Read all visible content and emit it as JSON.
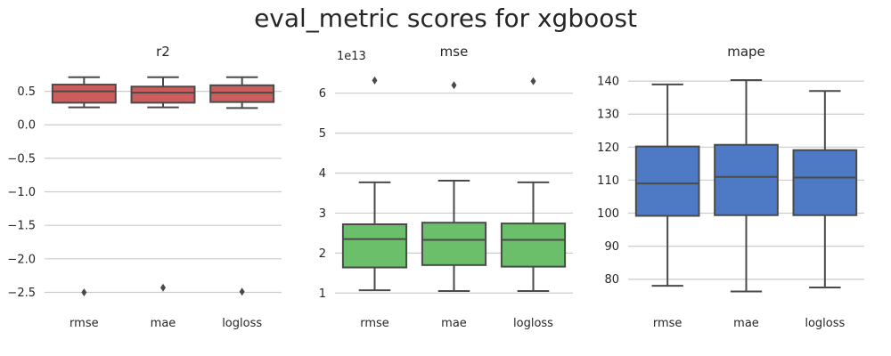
{
  "suptitle": "eval_metric scores for xgboost",
  "chart_data": [
    {
      "type": "box",
      "title": "r2",
      "color": "#cd5c5c",
      "categories": [
        "rmse",
        "mae",
        "logloss"
      ],
      "ylim": [
        -2.6,
        0.8
      ],
      "yticks": [
        -2.5,
        -2.0,
        -1.5,
        -1.0,
        -0.5,
        0.0,
        0.5
      ],
      "ytick_labels": [
        "−2.5",
        "−2.0",
        "−1.5",
        "−1.0",
        "−0.5",
        "0.0",
        "0.5"
      ],
      "offset_label": "",
      "boxes": [
        {
          "whislo": 0.26,
          "q1": 0.33,
          "med": 0.5,
          "q3": 0.6,
          "whishi": 0.71,
          "fliers": [
            -2.5
          ]
        },
        {
          "whislo": 0.26,
          "q1": 0.33,
          "med": 0.48,
          "q3": 0.57,
          "whishi": 0.71,
          "fliers": [
            -2.43
          ]
        },
        {
          "whislo": 0.25,
          "q1": 0.34,
          "med": 0.48,
          "q3": 0.59,
          "whishi": 0.71,
          "fliers": [
            -2.49
          ]
        }
      ]
    },
    {
      "type": "box",
      "title": "mse",
      "color": "#6bbf6b",
      "categories": [
        "rmse",
        "mae",
        "logloss"
      ],
      "ylim": [
        0.85,
        6.55
      ],
      "yticks": [
        1,
        2,
        3,
        4,
        5,
        6
      ],
      "ytick_labels": [
        "1",
        "2",
        "3",
        "4",
        "5",
        "6"
      ],
      "offset_label": "1e13",
      "boxes": [
        {
          "whislo": 1.07,
          "q1": 1.64,
          "med": 2.35,
          "q3": 2.72,
          "whishi": 3.77,
          "fliers": [
            6.32
          ]
        },
        {
          "whislo": 1.05,
          "q1": 1.7,
          "med": 2.33,
          "q3": 2.76,
          "whishi": 3.81,
          "fliers": [
            6.2
          ]
        },
        {
          "whislo": 1.05,
          "q1": 1.66,
          "med": 2.33,
          "q3": 2.74,
          "whishi": 3.77,
          "fliers": [
            6.3
          ]
        }
      ]
    },
    {
      "type": "box",
      "title": "mape",
      "color": "#4e79c4",
      "categories": [
        "rmse",
        "mae",
        "logloss"
      ],
      "ylim": [
        74,
        143
      ],
      "yticks": [
        80,
        90,
        100,
        110,
        120,
        130,
        140
      ],
      "ytick_labels": [
        "80",
        "90",
        "100",
        "110",
        "120",
        "130",
        "140"
      ],
      "offset_label": "",
      "boxes": [
        {
          "whislo": 78.0,
          "q1": 99.2,
          "med": 109.0,
          "q3": 120.2,
          "whishi": 139.0,
          "fliers": []
        },
        {
          "whislo": 76.3,
          "q1": 99.4,
          "med": 111.0,
          "q3": 120.7,
          "whishi": 140.3,
          "fliers": []
        },
        {
          "whislo": 77.5,
          "q1": 99.4,
          "med": 110.8,
          "q3": 119.1,
          "whishi": 137.0,
          "fliers": []
        }
      ]
    }
  ]
}
